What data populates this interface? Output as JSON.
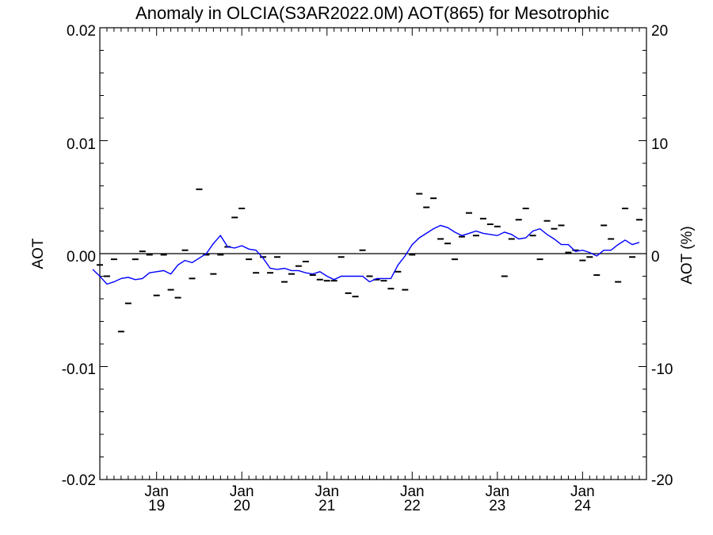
{
  "chart_data": {
    "type": "line",
    "title": "Anomaly in OLCIA(S3AR2022.0M) AOT(865) for Mesotrophic",
    "ylabel": "AOT",
    "ylabel_right": "AOT (%)",
    "ylim": [
      -0.02,
      0.02
    ],
    "ylim_right": [
      -20,
      20
    ],
    "y_ticks": [
      "0.02",
      "0.01",
      "0.00",
      "-0.01",
      "-0.02"
    ],
    "y_ticks_right": [
      "20",
      "10",
      "0",
      "-10",
      "-20"
    ],
    "x_ticks": [
      {
        "month": "Jan",
        "year": "19"
      },
      {
        "month": "Jan",
        "year": "20"
      },
      {
        "month": "Jan",
        "year": "21"
      },
      {
        "month": "Jan",
        "year": "22"
      },
      {
        "month": "Jan",
        "year": "23"
      },
      {
        "month": "Jan",
        "year": "24"
      }
    ],
    "xlim": [
      "2018-05",
      "2024-10"
    ],
    "colors": {
      "line": "#0000ff",
      "markers": "#000000",
      "zero_line": "#000000"
    },
    "series": [
      {
        "kind": "monthly-markers",
        "points": [
          [
            "2018-05",
            -0.001
          ],
          [
            "2018-06",
            -0.002
          ],
          [
            "2018-07",
            -0.0005
          ],
          [
            "2018-08",
            -0.0069
          ],
          [
            "2018-09",
            -0.0044
          ],
          [
            "2018-10",
            -0.0005
          ],
          [
            "2018-11",
            0.0002
          ],
          [
            "2018-12",
            -0.0001
          ],
          [
            "2019-01",
            -0.0037
          ],
          [
            "2019-02",
            -0.0001
          ],
          [
            "2019-03",
            -0.0032
          ],
          [
            "2019-04",
            -0.0039
          ],
          [
            "2019-05",
            0.0003
          ],
          [
            "2019-06",
            -0.0022
          ],
          [
            "2019-07",
            0.0057
          ],
          [
            "2019-08",
            -0.0001
          ],
          [
            "2019-09",
            -0.0018
          ],
          [
            "2019-10",
            -0.0001
          ],
          [
            "2019-11",
            0.0006
          ],
          [
            "2019-12",
            0.0032
          ],
          [
            "2020-01",
            0.004
          ],
          [
            "2020-02",
            -0.0005
          ],
          [
            "2020-03",
            -0.0017
          ],
          [
            "2020-04",
            -0.0003
          ],
          [
            "2020-05",
            -0.0017
          ],
          [
            "2020-06",
            -0.0003
          ],
          [
            "2020-07",
            -0.0025
          ],
          [
            "2020-08",
            -0.0018
          ],
          [
            "2020-09",
            -0.0011
          ],
          [
            "2020-10",
            -0.0007
          ],
          [
            "2020-11",
            -0.0019
          ],
          [
            "2020-12",
            -0.0023
          ],
          [
            "2021-01",
            -0.0024
          ],
          [
            "2021-02",
            -0.0024
          ],
          [
            "2021-03",
            -0.0003
          ],
          [
            "2021-04",
            -0.0035
          ],
          [
            "2021-05",
            -0.0038
          ],
          [
            "2021-06",
            0.0003
          ],
          [
            "2021-07",
            -0.002
          ],
          [
            "2021-08",
            -0.0023
          ],
          [
            "2021-09",
            -0.0024
          ],
          [
            "2021-10",
            -0.0031
          ],
          [
            "2021-11",
            -0.0016
          ],
          [
            "2021-12",
            -0.0032
          ],
          [
            "2022-01",
            -0.0001
          ],
          [
            "2022-02",
            0.0053
          ],
          [
            "2022-03",
            0.0041
          ],
          [
            "2022-04",
            0.0049
          ],
          [
            "2022-05",
            0.0013
          ],
          [
            "2022-06",
            0.0009
          ],
          [
            "2022-07",
            -0.0005
          ],
          [
            "2022-08",
            0.0015
          ],
          [
            "2022-09",
            0.0036
          ],
          [
            "2022-10",
            0.0016
          ],
          [
            "2022-11",
            0.0031
          ],
          [
            "2022-12",
            0.0026
          ],
          [
            "2023-01",
            0.0024
          ],
          [
            "2023-02",
            -0.002
          ],
          [
            "2023-03",
            0.0013
          ],
          [
            "2023-04",
            0.003
          ],
          [
            "2023-05",
            0.004
          ],
          [
            "2023-06",
            0.0016
          ],
          [
            "2023-07",
            -0.0005
          ],
          [
            "2023-08",
            0.0029
          ],
          [
            "2023-09",
            0.0022
          ],
          [
            "2023-10",
            0.0025
          ],
          [
            "2023-11",
            0.0001
          ],
          [
            "2023-12",
            0.0003
          ],
          [
            "2024-01",
            -0.0006
          ],
          [
            "2024-02",
            -0.0003
          ],
          [
            "2024-03",
            -0.0019
          ],
          [
            "2024-04",
            0.0025
          ],
          [
            "2024-05",
            0.0013
          ],
          [
            "2024-06",
            -0.0025
          ],
          [
            "2024-07",
            0.004
          ],
          [
            "2024-08",
            -0.0003
          ],
          [
            "2024-09",
            0.003
          ]
        ]
      },
      {
        "kind": "running-mean",
        "points": [
          [
            "2018-04",
            -0.0014
          ],
          [
            "2018-05",
            -0.002
          ],
          [
            "2018-06",
            -0.0027
          ],
          [
            "2018-07",
            -0.0025
          ],
          [
            "2018-08",
            -0.0022
          ],
          [
            "2018-09",
            -0.0021
          ],
          [
            "2018-10",
            -0.0023
          ],
          [
            "2018-11",
            -0.0022
          ],
          [
            "2018-12",
            -0.0017
          ],
          [
            "2019-01",
            -0.0016
          ],
          [
            "2019-02",
            -0.0015
          ],
          [
            "2019-03",
            -0.0018
          ],
          [
            "2019-04",
            -0.001
          ],
          [
            "2019-05",
            -0.0006
          ],
          [
            "2019-06",
            -0.0008
          ],
          [
            "2019-07",
            -0.0004
          ],
          [
            "2019-08",
            0.0
          ],
          [
            "2019-09",
            0.0009
          ],
          [
            "2019-10",
            0.0016
          ],
          [
            "2019-11",
            0.0006
          ],
          [
            "2019-12",
            0.0005
          ],
          [
            "2020-01",
            0.0007
          ],
          [
            "2020-02",
            0.0004
          ],
          [
            "2020-03",
            0.0003
          ],
          [
            "2020-04",
            -0.0004
          ],
          [
            "2020-05",
            -0.0013
          ],
          [
            "2020-06",
            -0.0014
          ],
          [
            "2020-07",
            -0.0013
          ],
          [
            "2020-08",
            -0.0015
          ],
          [
            "2020-09",
            -0.0015
          ],
          [
            "2020-10",
            -0.0017
          ],
          [
            "2020-11",
            -0.0018
          ],
          [
            "2020-12",
            -0.0016
          ],
          [
            "2021-01",
            -0.002
          ],
          [
            "2021-02",
            -0.0023
          ],
          [
            "2021-03",
            -0.002
          ],
          [
            "2021-04",
            -0.002
          ],
          [
            "2021-05",
            -0.002
          ],
          [
            "2021-06",
            -0.002
          ],
          [
            "2021-07",
            -0.0025
          ],
          [
            "2021-08",
            -0.0022
          ],
          [
            "2021-09",
            -0.0022
          ],
          [
            "2021-10",
            -0.0022
          ],
          [
            "2021-11",
            -0.001
          ],
          [
            "2021-12",
            -0.0002
          ],
          [
            "2022-01",
            0.0008
          ],
          [
            "2022-02",
            0.0014
          ],
          [
            "2022-03",
            0.0018
          ],
          [
            "2022-04",
            0.0022
          ],
          [
            "2022-05",
            0.0025
          ],
          [
            "2022-06",
            0.0023
          ],
          [
            "2022-07",
            0.0019
          ],
          [
            "2022-08",
            0.0016
          ],
          [
            "2022-09",
            0.0018
          ],
          [
            "2022-10",
            0.002
          ],
          [
            "2022-11",
            0.0018
          ],
          [
            "2022-12",
            0.0017
          ],
          [
            "2023-01",
            0.0016
          ],
          [
            "2023-02",
            0.0019
          ],
          [
            "2023-03",
            0.0017
          ],
          [
            "2023-04",
            0.0013
          ],
          [
            "2023-05",
            0.0014
          ],
          [
            "2023-06",
            0.002
          ],
          [
            "2023-07",
            0.0022
          ],
          [
            "2023-08",
            0.0017
          ],
          [
            "2023-09",
            0.0013
          ],
          [
            "2023-10",
            0.0008
          ],
          [
            "2023-11",
            0.0008
          ],
          [
            "2023-12",
            0.0002
          ],
          [
            "2024-01",
            0.0003
          ],
          [
            "2024-02",
            0.0001
          ],
          [
            "2024-03",
            -0.0002
          ],
          [
            "2024-04",
            0.0003
          ],
          [
            "2024-05",
            0.0003
          ],
          [
            "2024-06",
            0.0008
          ],
          [
            "2024-07",
            0.0012
          ],
          [
            "2024-08",
            0.0008
          ],
          [
            "2024-09",
            0.001
          ]
        ]
      }
    ]
  }
}
